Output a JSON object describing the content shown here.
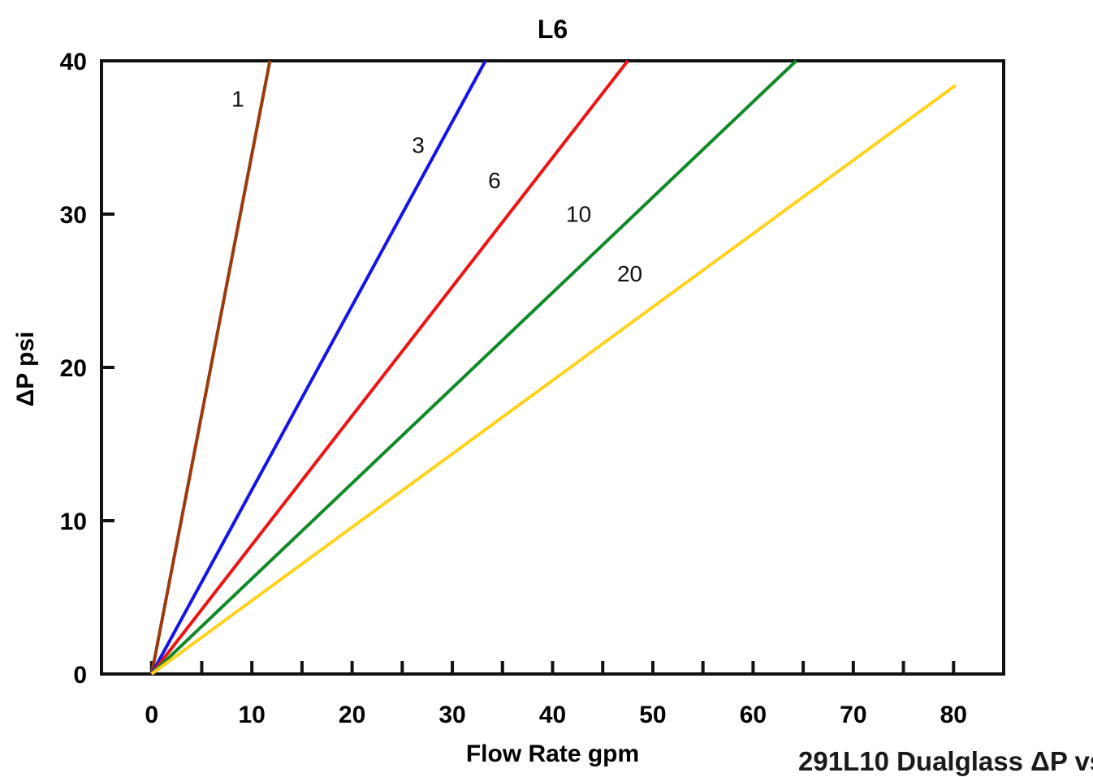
{
  "corner_annotation": "291L10 Dualglass ΔP vs",
  "chart_data": {
    "type": "line",
    "title": "L6",
    "xlabel": "Flow Rate gpm",
    "ylabel": "ΔP psi",
    "xlim": [
      -5,
      85
    ],
    "ylim": [
      0,
      40
    ],
    "grid": false,
    "legend_position": "inline-labels",
    "x_ticks_labeled": [
      0,
      10,
      20,
      30,
      40,
      50,
      60,
      70,
      80
    ],
    "x_ticks_minor": [
      5,
      15,
      25,
      35,
      45,
      55,
      65,
      75
    ],
    "y_ticks_labeled": [
      0,
      10,
      20,
      30,
      40
    ],
    "axis_color": "#121212",
    "series": [
      {
        "name": "1",
        "color": "#9c3a0e",
        "points": [
          [
            0,
            0
          ],
          [
            11.8,
            40
          ]
        ],
        "label_pos": [
          8.6,
          37.0
        ]
      },
      {
        "name": "3",
        "color": "#1414e8",
        "points": [
          [
            0,
            0
          ],
          [
            33.3,
            40
          ]
        ],
        "label_pos": [
          26.6,
          34.0
        ]
      },
      {
        "name": "6",
        "color": "#ee1414",
        "points": [
          [
            0,
            0
          ],
          [
            47.5,
            40
          ]
        ],
        "label_pos": [
          34.2,
          31.7
        ]
      },
      {
        "name": "10",
        "color": "#108a28",
        "points": [
          [
            0,
            0
          ],
          [
            64.3,
            40
          ]
        ],
        "label_pos": [
          42.6,
          29.5
        ]
      },
      {
        "name": "20",
        "color": "#ffd21e",
        "points": [
          [
            0,
            0
          ],
          [
            80.2,
            38.4
          ]
        ],
        "label_pos": [
          47.7,
          25.6
        ]
      }
    ]
  }
}
